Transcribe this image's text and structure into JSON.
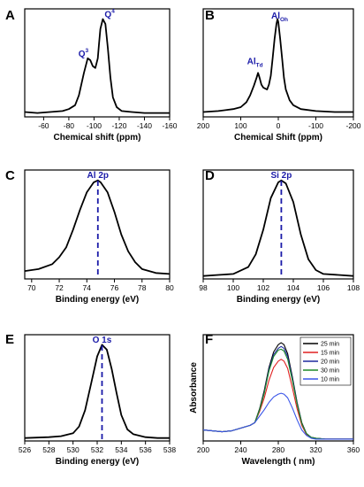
{
  "chart_data": [
    {
      "panel": "A",
      "type": "line",
      "xlabel": "Chemical shift (ppm)",
      "ylabel": "",
      "xlim": [
        -45,
        -160
      ],
      "ylim": [
        0,
        1.05
      ],
      "xticks": [
        -60,
        -80,
        -100,
        -120,
        -140,
        -160
      ],
      "tick_labels": [
        "-60",
        "-80",
        "-100",
        "-120",
        "-140",
        "-160"
      ],
      "series": [
        {
          "x": [
            -45,
            -55,
            -65,
            -75,
            -80,
            -85,
            -88,
            -92,
            -95,
            -97,
            -99,
            -101,
            -103,
            -104,
            -105,
            -107,
            -109,
            -111,
            -113,
            -115,
            -118,
            -122,
            -130,
            -140,
            -150,
            -160
          ],
          "y": [
            0.05,
            0.04,
            0.05,
            0.06,
            0.08,
            0.12,
            0.22,
            0.45,
            0.6,
            0.58,
            0.52,
            0.5,
            0.6,
            0.75,
            0.9,
            1.0,
            0.95,
            0.7,
            0.4,
            0.2,
            0.1,
            0.06,
            0.05,
            0.04,
            0.04,
            0.04
          ]
        }
      ],
      "annotations": [
        {
          "text": "Q",
          "sup": "3",
          "x": -96
        },
        {
          "text": "Q",
          "sup": "4",
          "x": -107
        }
      ]
    },
    {
      "panel": "B",
      "type": "line",
      "xlabel": "Chemical Shift (ppm)",
      "ylabel": "",
      "xlim": [
        200,
        -200
      ],
      "ylim": [
        0,
        1.05
      ],
      "xticks": [
        200,
        100,
        0,
        -100,
        -200
      ],
      "tick_labels": [
        "200",
        "100",
        "0",
        "-100",
        "-200"
      ],
      "series": [
        {
          "x": [
            200,
            160,
            120,
            100,
            85,
            75,
            65,
            58,
            54,
            50,
            45,
            40,
            30,
            25,
            20,
            15,
            10,
            5,
            2,
            0,
            -5,
            -10,
            -15,
            -20,
            -30,
            -40,
            -60,
            -100,
            -150,
            -200
          ],
          "y": [
            0.05,
            0.06,
            0.08,
            0.1,
            0.15,
            0.22,
            0.32,
            0.4,
            0.45,
            0.4,
            0.33,
            0.3,
            0.28,
            0.33,
            0.42,
            0.6,
            0.8,
            0.95,
            1.0,
            0.97,
            0.8,
            0.6,
            0.4,
            0.28,
            0.17,
            0.12,
            0.08,
            0.06,
            0.05,
            0.05
          ]
        }
      ],
      "annotations": [
        {
          "text": "Al",
          "sub": "Td",
          "x": 55
        },
        {
          "text": "Al",
          "sub": "Oh",
          "x": 0
        }
      ]
    },
    {
      "panel": "C",
      "type": "line",
      "xlabel": "Binding energy (eV)",
      "ylabel": "",
      "xlim": [
        69.5,
        80
      ],
      "ylim": [
        0,
        1.05
      ],
      "xticks": [
        70,
        72,
        74,
        76,
        78,
        80
      ],
      "tick_labels": [
        "70",
        "72",
        "74",
        "76",
        "78",
        "80"
      ],
      "series": [
        {
          "x": [
            69.5,
            70.5,
            71.5,
            72,
            72.5,
            73,
            73.5,
            74,
            74.5,
            74.8,
            75,
            75.5,
            76,
            76.5,
            77,
            77.5,
            78,
            79,
            80
          ],
          "y": [
            0.08,
            0.1,
            0.15,
            0.22,
            0.32,
            0.5,
            0.7,
            0.88,
            0.98,
            1.0,
            0.98,
            0.88,
            0.68,
            0.45,
            0.28,
            0.17,
            0.1,
            0.06,
            0.05
          ]
        }
      ],
      "annotations": [
        {
          "text": "Al 2p",
          "x": 74.8
        }
      ]
    },
    {
      "panel": "D",
      "type": "line",
      "xlabel": "Binding energy (eV)",
      "ylabel": "",
      "xlim": [
        98,
        108
      ],
      "ylim": [
        0,
        1.05
      ],
      "xticks": [
        98,
        100,
        102,
        104,
        106,
        108
      ],
      "tick_labels": [
        "98",
        "100",
        "102",
        "104",
        "106",
        "108"
      ],
      "series": [
        {
          "x": [
            98,
            99,
            100,
            101,
            101.5,
            102,
            102.5,
            103,
            103.2,
            103.5,
            104,
            104.5,
            105,
            105.5,
            106,
            107,
            108
          ],
          "y": [
            0.03,
            0.04,
            0.05,
            0.12,
            0.25,
            0.5,
            0.82,
            0.98,
            1.0,
            0.97,
            0.78,
            0.45,
            0.2,
            0.09,
            0.05,
            0.04,
            0.03
          ]
        }
      ],
      "annotations": [
        {
          "text": "Si 2p",
          "x": 103.2
        }
      ]
    },
    {
      "panel": "E",
      "type": "line",
      "xlabel": "Binding energy (eV)",
      "ylabel": "",
      "xlim": [
        526,
        538
      ],
      "ylim": [
        0,
        1.05
      ],
      "xticks": [
        526,
        528,
        530,
        532,
        534,
        536,
        538
      ],
      "tick_labels": [
        "526",
        "528",
        "530",
        "532",
        "534",
        "536",
        "538"
      ],
      "series": [
        {
          "x": [
            526,
            528,
            529,
            530,
            530.5,
            531,
            531.5,
            532,
            532.4,
            532.8,
            533.2,
            533.6,
            534,
            534.5,
            535,
            536,
            537,
            538
          ],
          "y": [
            0.03,
            0.04,
            0.05,
            0.08,
            0.15,
            0.32,
            0.6,
            0.88,
            1.0,
            0.95,
            0.75,
            0.5,
            0.27,
            0.12,
            0.07,
            0.04,
            0.03,
            0.03
          ]
        }
      ],
      "annotations": [
        {
          "text": "O 1s",
          "x": 532.4
        }
      ]
    },
    {
      "panel": "F",
      "type": "line",
      "xlabel": "Wavelength ( nm)",
      "ylabel": "Absorbance",
      "xlim": [
        200,
        360
      ],
      "ylim": [
        0,
        1.1
      ],
      "xticks": [
        200,
        240,
        280,
        320,
        360
      ],
      "tick_labels": [
        "200",
        "240",
        "280",
        "320",
        "360"
      ],
      "x": [
        200,
        210,
        220,
        230,
        240,
        250,
        255,
        260,
        265,
        270,
        275,
        280,
        283,
        286,
        290,
        295,
        300,
        305,
        310,
        315,
        320,
        330,
        340,
        350,
        360
      ],
      "series": [
        {
          "name": "25 min",
          "color": "#000000",
          "y": [
            0.12,
            0.11,
            0.1,
            0.11,
            0.14,
            0.17,
            0.2,
            0.35,
            0.55,
            0.8,
            0.97,
            1.05,
            1.07,
            1.05,
            0.95,
            0.7,
            0.42,
            0.2,
            0.08,
            0.04,
            0.03,
            0.02,
            0.02,
            0.02,
            0.02
          ]
        },
        {
          "name": "15 min",
          "color": "#e02020",
          "y": [
            0.12,
            0.11,
            0.1,
            0.11,
            0.14,
            0.17,
            0.2,
            0.32,
            0.47,
            0.66,
            0.8,
            0.87,
            0.89,
            0.87,
            0.79,
            0.58,
            0.35,
            0.17,
            0.07,
            0.04,
            0.03,
            0.02,
            0.02,
            0.02,
            0.02
          ]
        },
        {
          "name": "20 min",
          "color": "#1e2a9e",
          "y": [
            0.12,
            0.11,
            0.1,
            0.11,
            0.14,
            0.17,
            0.2,
            0.34,
            0.53,
            0.78,
            0.94,
            1.01,
            1.03,
            1.01,
            0.92,
            0.68,
            0.41,
            0.19,
            0.08,
            0.04,
            0.03,
            0.02,
            0.02,
            0.02,
            0.02
          ]
        },
        {
          "name": "30 min",
          "color": "#1e8a28",
          "y": [
            0.12,
            0.11,
            0.1,
            0.11,
            0.14,
            0.17,
            0.2,
            0.34,
            0.52,
            0.76,
            0.92,
            0.99,
            1.0,
            0.98,
            0.89,
            0.66,
            0.4,
            0.19,
            0.08,
            0.04,
            0.03,
            0.02,
            0.02,
            0.02,
            0.02
          ]
        },
        {
          "name": "10 min",
          "color": "#3a55e8",
          "y": [
            0.12,
            0.11,
            0.1,
            0.11,
            0.14,
            0.17,
            0.2,
            0.27,
            0.34,
            0.42,
            0.48,
            0.51,
            0.52,
            0.51,
            0.47,
            0.36,
            0.23,
            0.12,
            0.06,
            0.03,
            0.02,
            0.02,
            0.02,
            0.02,
            0.02
          ]
        }
      ],
      "legend": "top-right"
    }
  ]
}
